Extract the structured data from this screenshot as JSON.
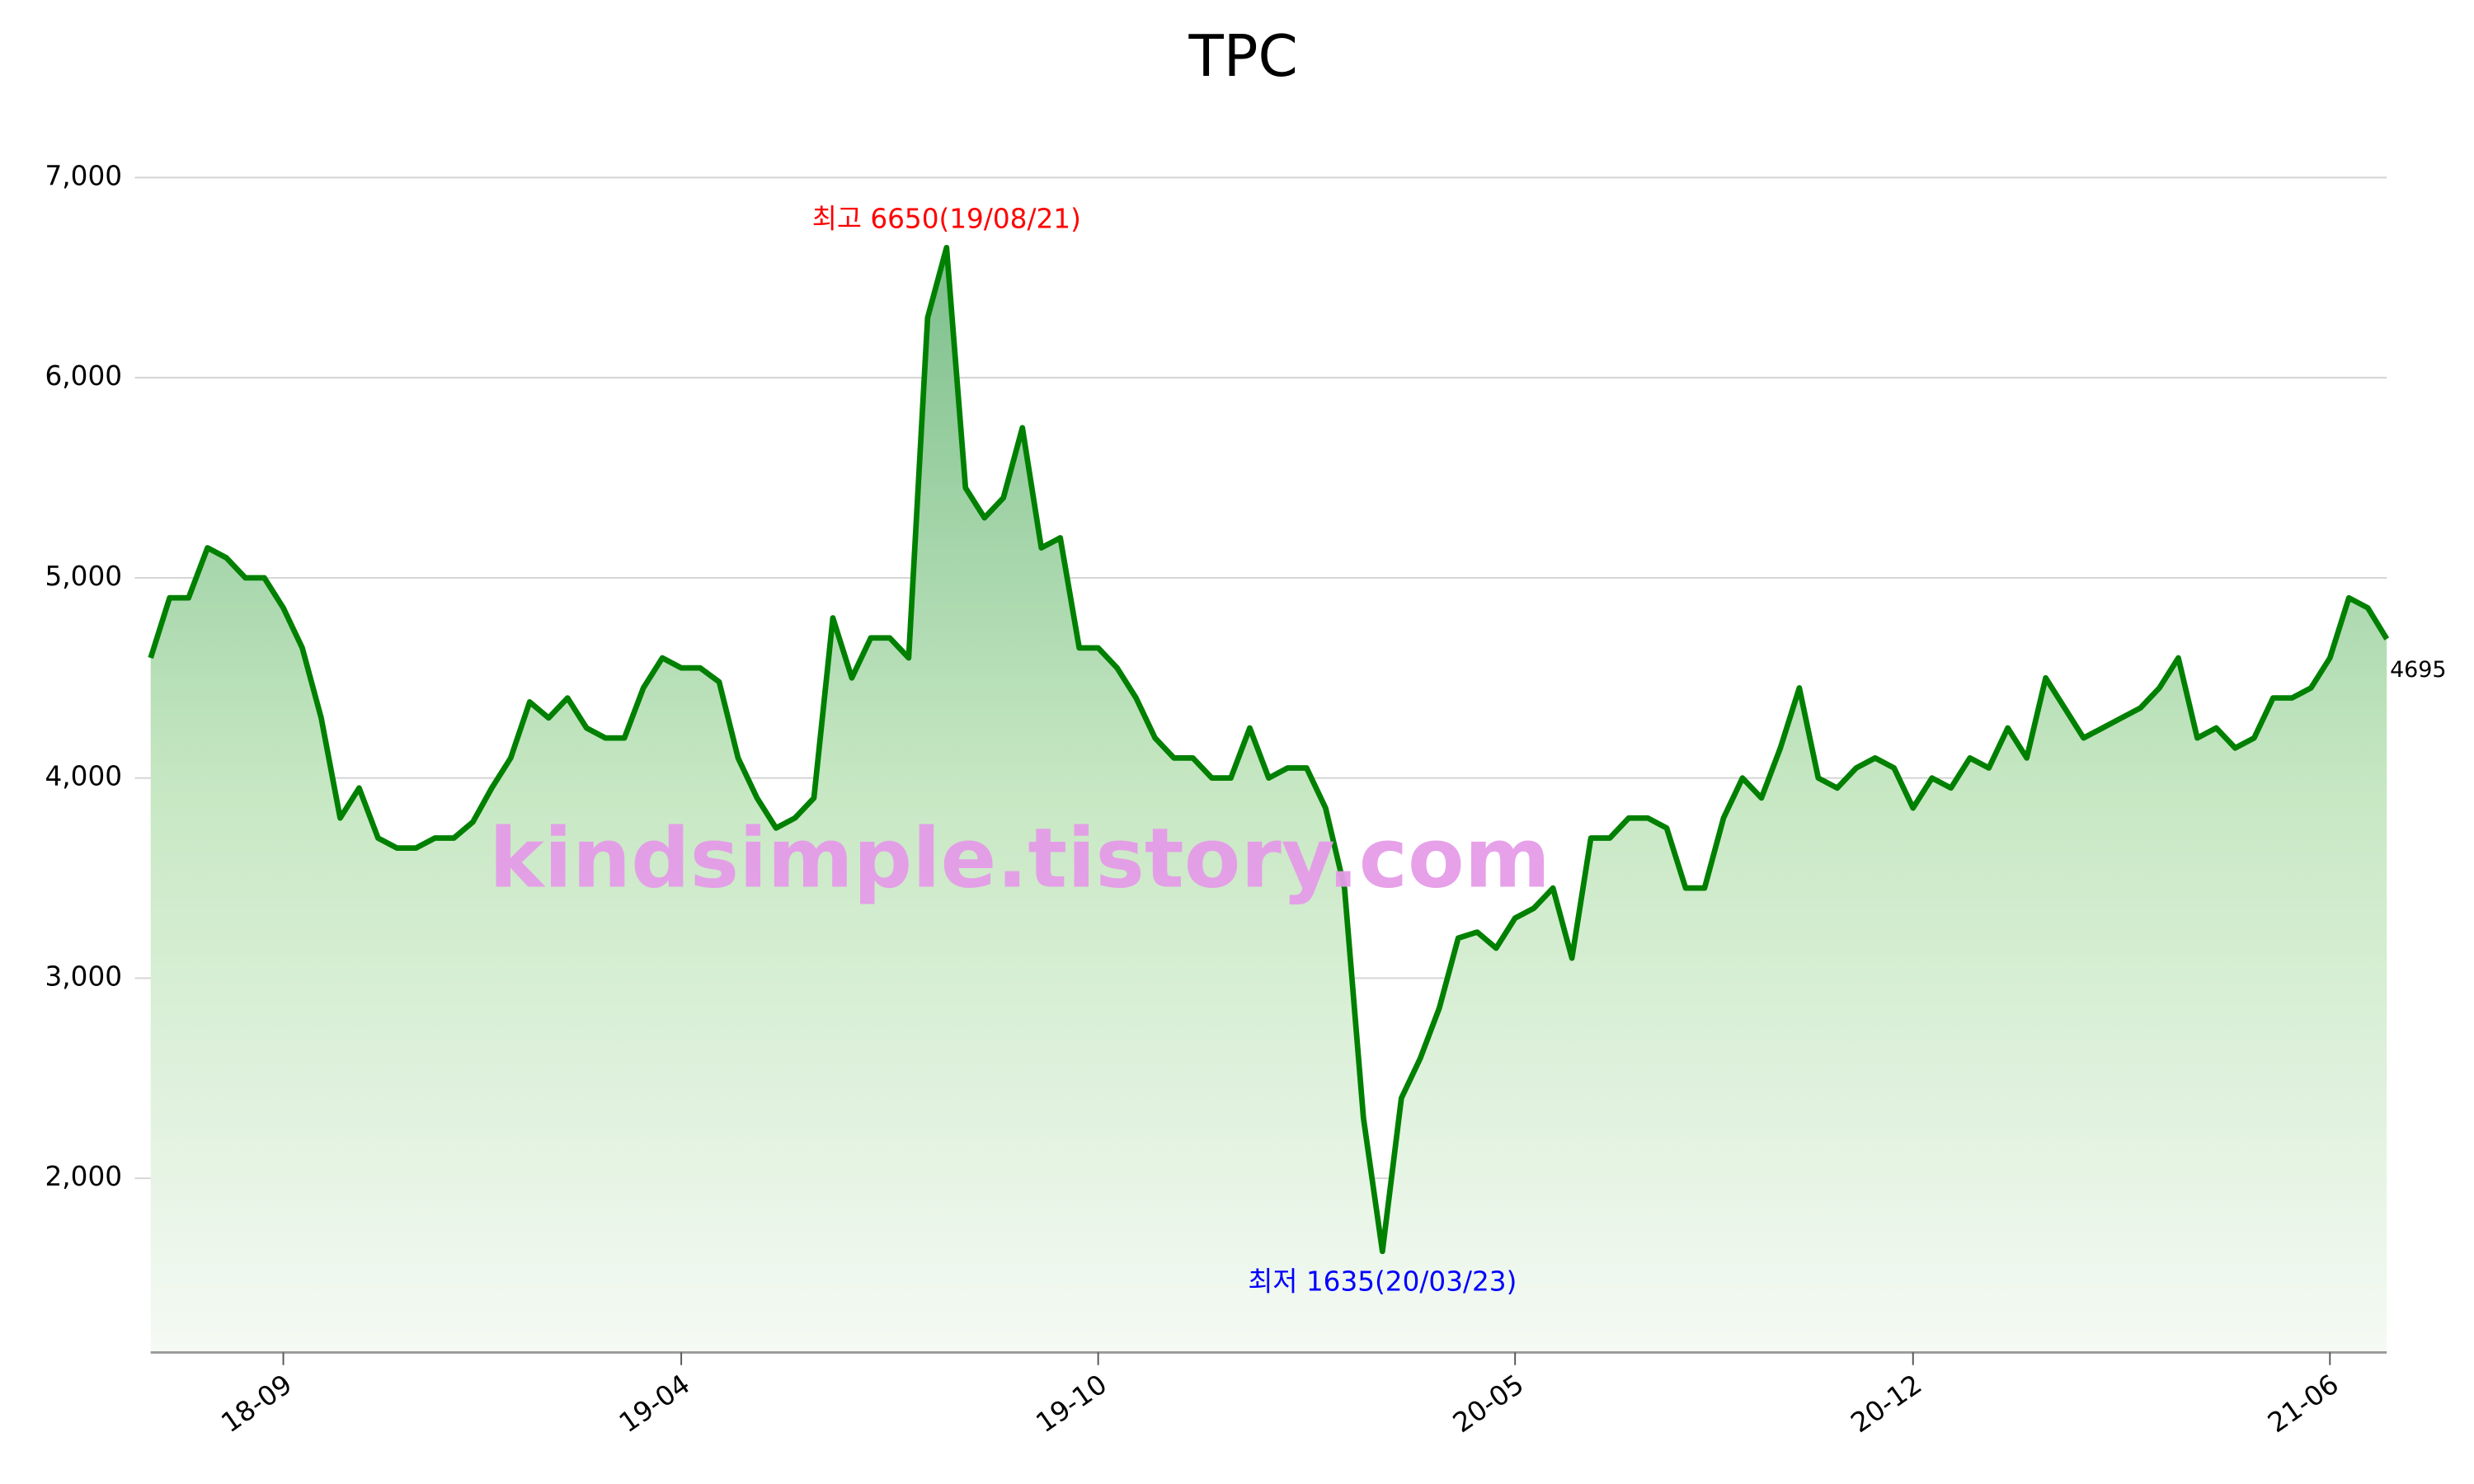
{
  "chart_data": {
    "type": "area",
    "title": "TPC",
    "categories": [
      null,
      null,
      null,
      null,
      null,
      null,
      null,
      "18-09",
      null,
      null,
      null,
      null,
      null,
      null,
      null,
      null,
      null,
      null,
      null,
      null,
      null,
      null,
      null,
      null,
      null,
      null,
      null,
      null,
      "19-04",
      null,
      null,
      null,
      null,
      null,
      null,
      null,
      null,
      null,
      null,
      null,
      null,
      null,
      null,
      null,
      null,
      null,
      null,
      null,
      null,
      null,
      "19-10",
      null,
      null,
      null,
      null,
      null,
      null,
      null,
      null,
      null,
      null,
      null,
      null,
      null,
      null,
      null,
      null,
      null,
      null,
      null,
      null,
      null,
      "20-05",
      null,
      null,
      null,
      null,
      null,
      null,
      null,
      null,
      null,
      null,
      null,
      null,
      null,
      null,
      null,
      null,
      null,
      null,
      null,
      null,
      "20-12",
      null,
      null,
      null,
      null,
      null,
      null,
      null,
      null,
      null,
      null,
      null,
      null,
      null,
      null,
      null,
      null,
      null,
      null,
      null,
      null,
      null,
      "21-06",
      null,
      null,
      null
    ],
    "values": [
      4600,
      4900,
      4900,
      5150,
      5100,
      5000,
      5000,
      4850,
      4650,
      4300,
      3800,
      3950,
      3700,
      3650,
      3650,
      3700,
      3700,
      3780,
      3950,
      4100,
      4380,
      4300,
      4400,
      4250,
      4200,
      4200,
      4450,
      4600,
      4550,
      4550,
      4480,
      4100,
      3900,
      3750,
      3800,
      3900,
      4800,
      4500,
      4700,
      4700,
      4600,
      6300,
      6650,
      5450,
      5300,
      5400,
      5750,
      5150,
      5200,
      4650,
      4650,
      4550,
      4400,
      4200,
      4100,
      4100,
      4000,
      4000,
      4250,
      4000,
      4050,
      4050,
      3850,
      3450,
      2300,
      1635,
      2400,
      2600,
      2850,
      3200,
      3230,
      3150,
      3300,
      3350,
      3450,
      3100,
      3700,
      3700,
      3800,
      3800,
      3750,
      3450,
      3450,
      3800,
      4000,
      3900,
      4150,
      4450,
      4000,
      3950,
      4050,
      4100,
      4050,
      3850,
      4000,
      3950,
      4100,
      4050,
      4250,
      4100,
      4500,
      4350,
      4200,
      4250,
      4300,
      4350,
      4450,
      4600,
      4200,
      4250,
      4150,
      4200,
      4400,
      4400,
      4450,
      4600,
      4900,
      4850,
      4695
    ],
    "color": "#008000",
    "ylim": [
      1130,
      7000
    ],
    "yticks": [
      {
        "value": 2000,
        "label": "2,000"
      },
      {
        "value": 3000,
        "label": "3,000"
      },
      {
        "value": 4000,
        "label": "4,000"
      },
      {
        "value": 5000,
        "label": "5,000"
      },
      {
        "value": 6000,
        "label": "6,000"
      },
      {
        "value": 7000,
        "label": "7,000"
      }
    ],
    "grid": true,
    "annotations": [
      {
        "text": "최고 6650(19/08/21)",
        "index": 42,
        "color": "#ff0000"
      },
      {
        "text": "최저 1635(20/03/23)",
        "index": 65,
        "color": "#0000ff"
      }
    ],
    "watermark": "kindsimple.tistory.com"
  }
}
